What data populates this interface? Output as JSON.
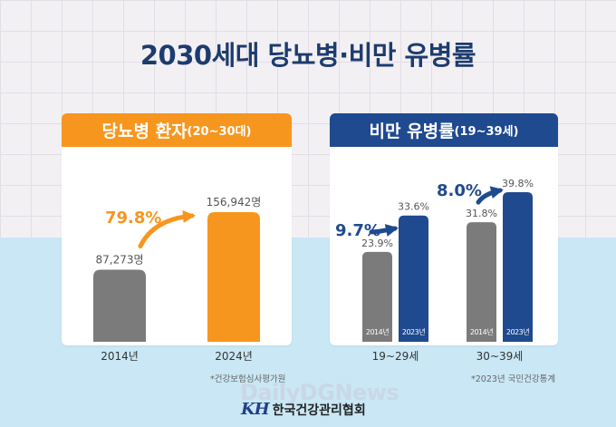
{
  "title": "2030세대 당뇨병·비만 유병률",
  "left_panel": {
    "title": "당뇨병 환자",
    "subtitle": "(20~30대)",
    "source": "*건강보험심사평가원"
  },
  "right_panel": {
    "title": "비만 유병률",
    "subtitle": "(19~39세)",
    "source": "*2023년 국민건강통계"
  },
  "footer": {
    "watermark": "DailyDGNews",
    "logo_mark": "KH",
    "org_name": "한국건강관리협회"
  },
  "colors": {
    "orange": "#f7961e",
    "navy": "#1f4a8f",
    "gray": "#7b7b7b",
    "title": "#1d3c6e"
  },
  "chart_data": [
    {
      "type": "bar",
      "categories": [
        "2014년",
        "2024년"
      ],
      "values": [
        87273,
        156942
      ],
      "value_labels": [
        "87,273명",
        "156,942명"
      ],
      "colors": [
        "#7b7b7b",
        "#f7961e"
      ],
      "growth": "79.8%"
    },
    {
      "type": "bar",
      "categories": [
        "19~29세",
        "30~39세"
      ],
      "bar_labels": [
        "2014년",
        "2023년"
      ],
      "series": [
        {
          "name": "2014년",
          "values": [
            23.9,
            31.8
          ]
        },
        {
          "name": "2023년",
          "values": [
            33.6,
            39.8
          ]
        }
      ],
      "value_labels": [
        [
          "23.9%",
          "33.6%"
        ],
        [
          "31.8%",
          "39.8%"
        ]
      ],
      "growth": [
        "9.7%",
        "8.0%"
      ]
    }
  ]
}
